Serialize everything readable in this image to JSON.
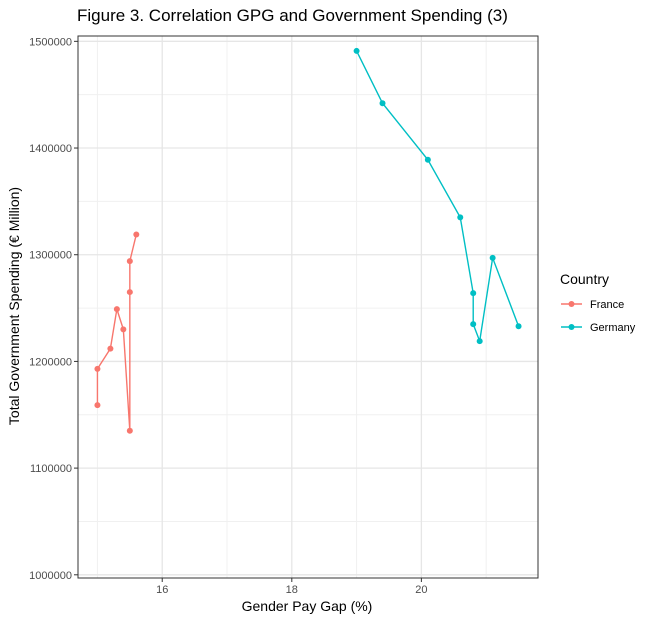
{
  "chart_data": {
    "type": "line",
    "title": "Figure 3. Correlation GPG and Government Spending (3)",
    "xlabel": "Gender Pay Gap (%)",
    "ylabel": "Total Government Spending (€ Million)",
    "xlim": [
      14.7,
      21.8
    ],
    "ylim": [
      997000,
      1505000
    ],
    "x_ticks": [
      16,
      18,
      20
    ],
    "x_tick_labels": [
      "16",
      "18",
      "20"
    ],
    "y_ticks": [
      1000000,
      1100000,
      1200000,
      1300000,
      1400000,
      1500000
    ],
    "y_tick_labels": [
      "1000000",
      "1100000",
      "1200000",
      "1300000",
      "1400000",
      "1500000"
    ],
    "grid": true,
    "legend": {
      "title": "Country",
      "position": "right"
    },
    "series": [
      {
        "name": "France",
        "color": "#F8766D",
        "x": [
          15.0,
          15.0,
          15.2,
          15.3,
          15.4,
          15.5,
          15.5,
          15.5,
          15.6
        ],
        "y": [
          1159000,
          1193000,
          1212000,
          1249000,
          1230000,
          1135000,
          1265000,
          1294000,
          1319000
        ]
      },
      {
        "name": "Germany",
        "color": "#00BFC4",
        "x": [
          19.0,
          19.4,
          20.1,
          20.6,
          20.8,
          20.8,
          20.9,
          21.1,
          21.5
        ],
        "y": [
          1491000,
          1442000,
          1389000,
          1335000,
          1264000,
          1235000,
          1219000,
          1297000,
          1233000
        ]
      }
    ]
  }
}
